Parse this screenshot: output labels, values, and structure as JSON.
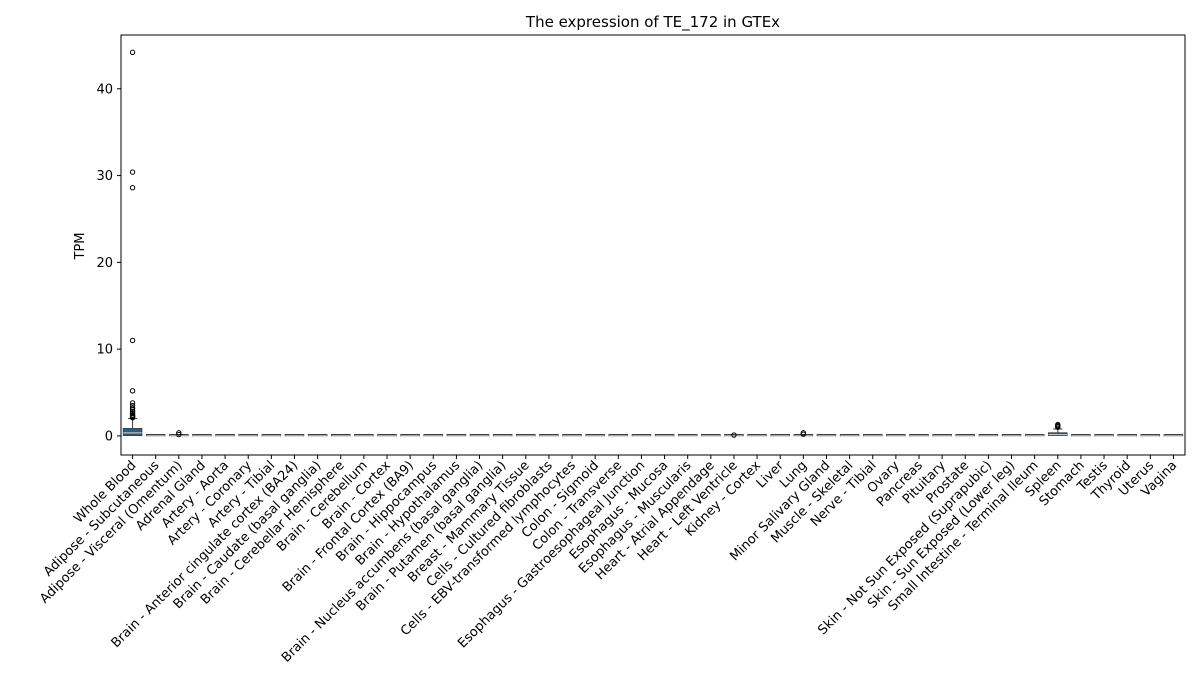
{
  "chart_data": {
    "type": "box",
    "title": "The expression of TE_172 in GTEx",
    "ylabel": "TPM",
    "xlabel": "",
    "ylim": [
      -2.2,
      46.2
    ],
    "yticks": [
      0,
      10,
      20,
      30,
      40
    ],
    "grid": false,
    "legend": "none",
    "box_color": "#2f5d7f",
    "median_color": "#d9d9d9",
    "categories": [
      "Whole Blood",
      "Adipose - Subcutaneous",
      "Adipose - Visceral (Omentum)",
      "Adrenal Gland",
      "Artery - Aorta",
      "Artery - Coronary",
      "Artery - Tibial",
      "Brain - Anterior cingulate cortex (BA24)",
      "Brain - Caudate (basal ganglia)",
      "Brain - Cerebellar Hemisphere",
      "Brain - Cerebellum",
      "Brain - Cortex",
      "Brain - Frontal Cortex (BA9)",
      "Brain - Hippocampus",
      "Brain - Hypothalamus",
      "Brain - Nucleus accumbens (basal ganglia)",
      "Brain - Putamen (basal ganglia)",
      "Breast - Mammary Tissue",
      "Cells - Cultured fibroblasts",
      "Cells - EBV-transformed lymphocytes",
      "Colon - Sigmoid",
      "Colon - Transverse",
      "Esophagus - Gastroesophageal Junction",
      "Esophagus - Mucosa",
      "Esophagus - Muscularis",
      "Heart - Atrial Appendage",
      "Heart - Left Ventricle",
      "Kidney - Cortex",
      "Liver",
      "Lung",
      "Minor Salivary Gland",
      "Muscle - Skeletal",
      "Nerve - Tibial",
      "Ovary",
      "Pancreas",
      "Pituitary",
      "Prostate",
      "Skin - Not Sun Exposed (Suprapubic)",
      "Skin - Sun Exposed (Lower leg)",
      "Small Intestine - Terminal Ileum",
      "Spleen",
      "Stomach",
      "Testis",
      "Thyroid",
      "Uterus",
      "Vagina"
    ],
    "boxes": [
      {
        "q1": 0.05,
        "median": 0.35,
        "q3": 0.85,
        "whislo": 0.0,
        "whishi": 2.0,
        "fliers": [
          2.1,
          2.2,
          2.3,
          2.4,
          2.6,
          2.8,
          3.0,
          3.2,
          3.5,
          3.8,
          5.2,
          11.0,
          28.6,
          30.4,
          44.2
        ]
      },
      {
        "q1": 0,
        "median": 0,
        "q3": 0,
        "whislo": 0,
        "whishi": 0,
        "fliers": []
      },
      {
        "q1": 0,
        "median": 0,
        "q3": 0,
        "whislo": 0,
        "whishi": 0,
        "fliers": [
          0.15,
          0.35
        ]
      },
      {
        "q1": 0,
        "median": 0,
        "q3": 0,
        "whislo": 0,
        "whishi": 0,
        "fliers": []
      },
      {
        "q1": 0,
        "median": 0,
        "q3": 0,
        "whislo": 0,
        "whishi": 0,
        "fliers": []
      },
      {
        "q1": 0,
        "median": 0,
        "q3": 0,
        "whislo": 0,
        "whishi": 0,
        "fliers": []
      },
      {
        "q1": 0,
        "median": 0,
        "q3": 0,
        "whislo": 0,
        "whishi": 0,
        "fliers": []
      },
      {
        "q1": 0,
        "median": 0,
        "q3": 0,
        "whislo": 0,
        "whishi": 0,
        "fliers": []
      },
      {
        "q1": 0,
        "median": 0,
        "q3": 0,
        "whislo": 0,
        "whishi": 0,
        "fliers": []
      },
      {
        "q1": 0,
        "median": 0,
        "q3": 0,
        "whislo": 0,
        "whishi": 0,
        "fliers": []
      },
      {
        "q1": 0,
        "median": 0,
        "q3": 0,
        "whislo": 0,
        "whishi": 0,
        "fliers": []
      },
      {
        "q1": 0,
        "median": 0,
        "q3": 0,
        "whislo": 0,
        "whishi": 0,
        "fliers": []
      },
      {
        "q1": 0,
        "median": 0,
        "q3": 0,
        "whislo": 0,
        "whishi": 0,
        "fliers": []
      },
      {
        "q1": 0,
        "median": 0,
        "q3": 0,
        "whislo": 0,
        "whishi": 0,
        "fliers": []
      },
      {
        "q1": 0,
        "median": 0,
        "q3": 0,
        "whislo": 0,
        "whishi": 0,
        "fliers": []
      },
      {
        "q1": 0,
        "median": 0,
        "q3": 0,
        "whislo": 0,
        "whishi": 0,
        "fliers": []
      },
      {
        "q1": 0,
        "median": 0,
        "q3": 0,
        "whislo": 0,
        "whishi": 0,
        "fliers": []
      },
      {
        "q1": 0,
        "median": 0,
        "q3": 0,
        "whislo": 0,
        "whishi": 0,
        "fliers": []
      },
      {
        "q1": 0,
        "median": 0,
        "q3": 0,
        "whislo": 0,
        "whishi": 0,
        "fliers": []
      },
      {
        "q1": 0,
        "median": 0,
        "q3": 0,
        "whislo": 0,
        "whishi": 0,
        "fliers": []
      },
      {
        "q1": 0,
        "median": 0,
        "q3": 0,
        "whislo": 0,
        "whishi": 0,
        "fliers": []
      },
      {
        "q1": 0,
        "median": 0,
        "q3": 0,
        "whislo": 0,
        "whishi": 0,
        "fliers": []
      },
      {
        "q1": 0,
        "median": 0,
        "q3": 0,
        "whislo": 0,
        "whishi": 0,
        "fliers": []
      },
      {
        "q1": 0,
        "median": 0,
        "q3": 0,
        "whislo": 0,
        "whishi": 0,
        "fliers": []
      },
      {
        "q1": 0,
        "median": 0,
        "q3": 0,
        "whislo": 0,
        "whishi": 0,
        "fliers": []
      },
      {
        "q1": 0,
        "median": 0,
        "q3": 0,
        "whislo": 0,
        "whishi": 0,
        "fliers": []
      },
      {
        "q1": 0,
        "median": 0,
        "q3": 0,
        "whislo": 0,
        "whishi": 0,
        "fliers": [
          0.1
        ]
      },
      {
        "q1": 0,
        "median": 0,
        "q3": 0,
        "whislo": 0,
        "whishi": 0,
        "fliers": []
      },
      {
        "q1": 0,
        "median": 0,
        "q3": 0,
        "whislo": 0,
        "whishi": 0,
        "fliers": []
      },
      {
        "q1": 0,
        "median": 0,
        "q3": 0.05,
        "whislo": 0,
        "whishi": 0.1,
        "fliers": [
          0.2,
          0.35
        ]
      },
      {
        "q1": 0,
        "median": 0,
        "q3": 0,
        "whislo": 0,
        "whishi": 0,
        "fliers": []
      },
      {
        "q1": 0,
        "median": 0,
        "q3": 0,
        "whislo": 0,
        "whishi": 0,
        "fliers": []
      },
      {
        "q1": 0,
        "median": 0,
        "q3": 0,
        "whislo": 0,
        "whishi": 0,
        "fliers": []
      },
      {
        "q1": 0,
        "median": 0,
        "q3": 0,
        "whislo": 0,
        "whishi": 0,
        "fliers": []
      },
      {
        "q1": 0,
        "median": 0,
        "q3": 0,
        "whislo": 0,
        "whishi": 0,
        "fliers": []
      },
      {
        "q1": 0,
        "median": 0,
        "q3": 0,
        "whislo": 0,
        "whishi": 0,
        "fliers": []
      },
      {
        "q1": 0,
        "median": 0,
        "q3": 0,
        "whislo": 0,
        "whishi": 0,
        "fliers": []
      },
      {
        "q1": 0,
        "median": 0,
        "q3": 0,
        "whislo": 0,
        "whishi": 0,
        "fliers": []
      },
      {
        "q1": 0,
        "median": 0,
        "q3": 0,
        "whislo": 0,
        "whishi": 0,
        "fliers": []
      },
      {
        "q1": 0,
        "median": 0,
        "q3": 0,
        "whislo": 0,
        "whishi": 0,
        "fliers": []
      },
      {
        "q1": 0.05,
        "median": 0.15,
        "q3": 0.35,
        "whislo": 0,
        "whishi": 0.8,
        "fliers": [
          1.0,
          1.1,
          1.2,
          1.3
        ]
      },
      {
        "q1": 0,
        "median": 0,
        "q3": 0,
        "whislo": 0,
        "whishi": 0,
        "fliers": []
      },
      {
        "q1": 0,
        "median": 0,
        "q3": 0,
        "whislo": 0,
        "whishi": 0,
        "fliers": []
      },
      {
        "q1": 0,
        "median": 0,
        "q3": 0,
        "whislo": 0,
        "whishi": 0,
        "fliers": []
      },
      {
        "q1": 0,
        "median": 0,
        "q3": 0,
        "whislo": 0,
        "whishi": 0,
        "fliers": []
      },
      {
        "q1": 0,
        "median": 0,
        "q3": 0,
        "whislo": 0,
        "whishi": 0,
        "fliers": []
      }
    ]
  }
}
